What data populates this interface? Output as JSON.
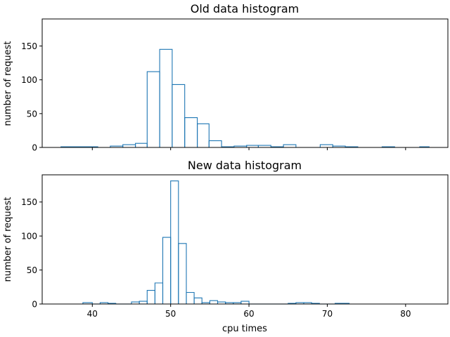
{
  "chart_data": [
    {
      "type": "histogram",
      "title": "Old data histogram",
      "xlabel": "",
      "ylabel": "number of request",
      "xlim": [
        33.6,
        85.4
      ],
      "ylim": [
        0,
        190
      ],
      "xticks": [
        40,
        50,
        60,
        70,
        80
      ],
      "xtick_labels_visible": false,
      "yticks": [
        0,
        50,
        100,
        150
      ],
      "grid": false,
      "bins": [
        {
          "x0": 36.0,
          "x1": 37.6,
          "count": 1
        },
        {
          "x0": 37.6,
          "x1": 39.2,
          "count": 1
        },
        {
          "x0": 39.2,
          "x1": 40.7,
          "count": 1
        },
        {
          "x0": 40.7,
          "x1": 42.3,
          "count": 0
        },
        {
          "x0": 42.3,
          "x1": 43.9,
          "count": 2
        },
        {
          "x0": 43.9,
          "x1": 45.5,
          "count": 4
        },
        {
          "x0": 45.5,
          "x1": 47.0,
          "count": 6
        },
        {
          "x0": 47.0,
          "x1": 48.6,
          "count": 112
        },
        {
          "x0": 48.6,
          "x1": 50.2,
          "count": 145
        },
        {
          "x0": 50.2,
          "x1": 51.8,
          "count": 93
        },
        {
          "x0": 51.8,
          "x1": 53.4,
          "count": 44
        },
        {
          "x0": 53.4,
          "x1": 54.9,
          "count": 35
        },
        {
          "x0": 54.9,
          "x1": 56.5,
          "count": 10
        },
        {
          "x0": 56.5,
          "x1": 58.1,
          "count": 1
        },
        {
          "x0": 58.1,
          "x1": 59.7,
          "count": 2
        },
        {
          "x0": 59.7,
          "x1": 61.2,
          "count": 3
        },
        {
          "x0": 61.2,
          "x1": 62.8,
          "count": 3
        },
        {
          "x0": 62.8,
          "x1": 64.4,
          "count": 1
        },
        {
          "x0": 64.4,
          "x1": 66.0,
          "count": 4
        },
        {
          "x0": 66.0,
          "x1": 67.6,
          "count": 0
        },
        {
          "x0": 67.6,
          "x1": 69.1,
          "count": 0
        },
        {
          "x0": 69.1,
          "x1": 70.7,
          "count": 4
        },
        {
          "x0": 70.7,
          "x1": 72.3,
          "count": 2
        },
        {
          "x0": 72.3,
          "x1": 73.9,
          "count": 1
        },
        {
          "x0": 73.9,
          "x1": 75.4,
          "count": 0
        },
        {
          "x0": 75.4,
          "x1": 77.0,
          "count": 0
        },
        {
          "x0": 77.0,
          "x1": 78.6,
          "count": 1
        },
        {
          "x0": 78.6,
          "x1": 80.2,
          "count": 0
        },
        {
          "x0": 80.2,
          "x1": 81.8,
          "count": 0
        },
        {
          "x0": 81.8,
          "x1": 83.0,
          "count": 1
        }
      ]
    },
    {
      "type": "histogram",
      "title": "New data histogram",
      "xlabel": "cpu times",
      "ylabel": "number of request",
      "xlim": [
        33.6,
        85.4
      ],
      "ylim": [
        0,
        190
      ],
      "xticks": [
        40,
        50,
        60,
        70,
        80
      ],
      "xtick_labels_visible": true,
      "yticks": [
        0,
        50,
        100,
        150
      ],
      "grid": false,
      "bins": [
        {
          "x0": 38.8,
          "x1": 40.0,
          "count": 2
        },
        {
          "x0": 40.0,
          "x1": 41.0,
          "count": 0
        },
        {
          "x0": 41.0,
          "x1": 42.0,
          "count": 2
        },
        {
          "x0": 42.0,
          "x1": 43.0,
          "count": 1
        },
        {
          "x0": 43.0,
          "x1": 44.0,
          "count": 0
        },
        {
          "x0": 44.0,
          "x1": 45.0,
          "count": 0
        },
        {
          "x0": 45.0,
          "x1": 46.0,
          "count": 3
        },
        {
          "x0": 46.0,
          "x1": 47.0,
          "count": 4
        },
        {
          "x0": 47.0,
          "x1": 48.0,
          "count": 20
        },
        {
          "x0": 48.0,
          "x1": 49.0,
          "count": 31
        },
        {
          "x0": 49.0,
          "x1": 50.0,
          "count": 98
        },
        {
          "x0": 50.0,
          "x1": 51.0,
          "count": 181
        },
        {
          "x0": 51.0,
          "x1": 52.0,
          "count": 89
        },
        {
          "x0": 52.0,
          "x1": 53.0,
          "count": 17
        },
        {
          "x0": 53.0,
          "x1": 54.0,
          "count": 9
        },
        {
          "x0": 54.0,
          "x1": 55.0,
          "count": 2
        },
        {
          "x0": 55.0,
          "x1": 56.0,
          "count": 5
        },
        {
          "x0": 56.0,
          "x1": 57.0,
          "count": 3
        },
        {
          "x0": 57.0,
          "x1": 58.0,
          "count": 2
        },
        {
          "x0": 58.0,
          "x1": 59.0,
          "count": 2
        },
        {
          "x0": 59.0,
          "x1": 60.0,
          "count": 4
        },
        {
          "x0": 60.0,
          "x1": 61.0,
          "count": 0
        },
        {
          "x0": 61.0,
          "x1": 62.0,
          "count": 0
        },
        {
          "x0": 62.0,
          "x1": 63.0,
          "count": 0
        },
        {
          "x0": 63.0,
          "x1": 64.0,
          "count": 0
        },
        {
          "x0": 64.0,
          "x1": 65.0,
          "count": 0
        },
        {
          "x0": 65.0,
          "x1": 66.0,
          "count": 1
        },
        {
          "x0": 66.0,
          "x1": 67.0,
          "count": 2
        },
        {
          "x0": 67.0,
          "x1": 68.0,
          "count": 2
        },
        {
          "x0": 68.0,
          "x1": 69.0,
          "count": 1
        },
        {
          "x0": 69.0,
          "x1": 70.0,
          "count": 0
        },
        {
          "x0": 70.0,
          "x1": 71.0,
          "count": 0
        },
        {
          "x0": 71.0,
          "x1": 72.0,
          "count": 1
        },
        {
          "x0": 72.0,
          "x1": 72.8,
          "count": 1
        }
      ]
    }
  ],
  "colors": {
    "series": "#1f77b4",
    "axes": "#000000",
    "background": "#ffffff"
  }
}
